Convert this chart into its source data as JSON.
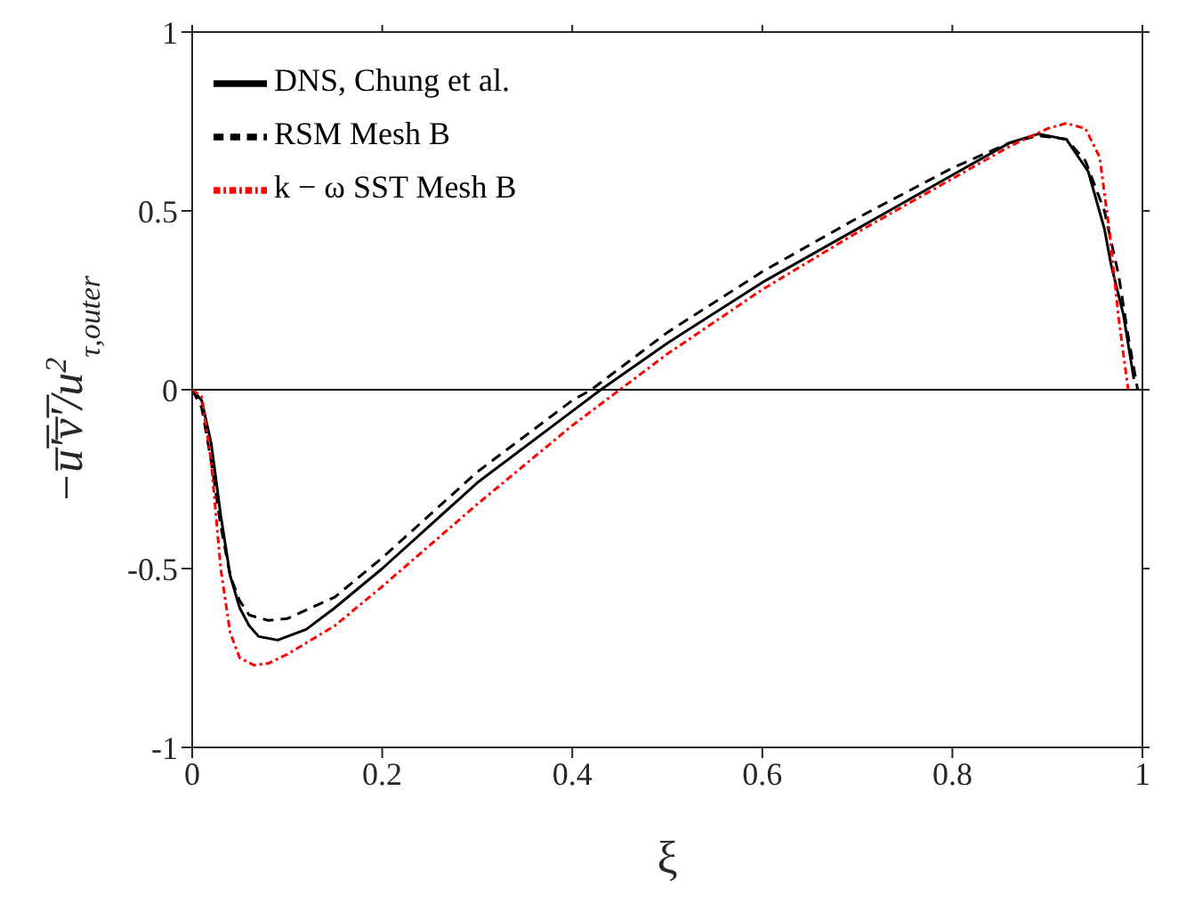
{
  "chart_data": {
    "type": "line",
    "xlabel": "ξ",
    "ylabel": "−u̅′̅v̅′̅/u$^{2}$$_{τ,outer}$",
    "xlim": [
      0,
      1
    ],
    "xticks": [
      0,
      0.2,
      0.4,
      0.6,
      0.8,
      1
    ],
    "ylim": [
      -1,
      1
    ],
    "yticks": [
      -1,
      -0.5,
      0,
      0.5,
      1
    ],
    "legend": "top left",
    "marker": "none",
    "ref_lines": [
      {
        "axis": "y",
        "value": 0,
        "color": "#000000"
      }
    ],
    "series": [
      {
        "name": "DNS, Chung et al.",
        "color": "#000000",
        "line_style": "solid",
        "x": [
          0,
          0.01,
          0.02,
          0.03,
          0.04,
          0.05,
          0.06,
          0.07,
          0.09,
          0.12,
          0.15,
          0.2,
          0.3,
          0.4,
          0.43,
          0.5,
          0.6,
          0.7,
          0.8,
          0.86,
          0.89,
          0.92,
          0.943,
          0.96,
          0.967,
          0.98,
          0.991
        ],
        "values": [
          0,
          -0.03,
          -0.15,
          -0.35,
          -0.52,
          -0.61,
          -0.66,
          -0.69,
          -0.7,
          -0.67,
          -0.61,
          -0.5,
          -0.26,
          -0.06,
          0,
          0.13,
          0.3,
          0.45,
          0.6,
          0.69,
          0.715,
          0.7,
          0.61,
          0.45,
          0.35,
          0.21,
          0.03
        ]
      },
      {
        "name": "RSM Mesh B",
        "color": "#000000",
        "line_style": "dashed",
        "x": [
          0,
          0.01,
          0.02,
          0.03,
          0.04,
          0.05,
          0.06,
          0.08,
          0.1,
          0.15,
          0.2,
          0.3,
          0.4,
          0.42,
          0.5,
          0.6,
          0.7,
          0.8,
          0.86,
          0.89,
          0.92,
          0.94,
          0.96,
          0.975,
          0.985,
          0.995
        ],
        "values": [
          0,
          -0.05,
          -0.2,
          -0.38,
          -0.52,
          -0.59,
          -0.63,
          -0.645,
          -0.64,
          -0.58,
          -0.47,
          -0.23,
          -0.03,
          0,
          0.16,
          0.33,
          0.48,
          0.62,
          0.69,
          0.71,
          0.7,
          0.64,
          0.5,
          0.32,
          0.15,
          0
        ]
      },
      {
        "name": "k − ω SST Mesh B",
        "color": "#ff0000",
        "line_style": "dashdot",
        "x": [
          0,
          0.01,
          0.02,
          0.03,
          0.04,
          0.05,
          0.065,
          0.08,
          0.1,
          0.15,
          0.2,
          0.3,
          0.4,
          0.45,
          0.5,
          0.6,
          0.7,
          0.8,
          0.86,
          0.9,
          0.92,
          0.94,
          0.955,
          0.965,
          0.975,
          0.985
        ],
        "values": [
          0,
          -0.02,
          -0.2,
          -0.5,
          -0.68,
          -0.75,
          -0.77,
          -0.765,
          -0.74,
          -0.66,
          -0.55,
          -0.32,
          -0.1,
          0,
          0.1,
          0.28,
          0.44,
          0.59,
          0.68,
          0.73,
          0.745,
          0.73,
          0.65,
          0.45,
          0.2,
          0
        ]
      }
    ]
  }
}
